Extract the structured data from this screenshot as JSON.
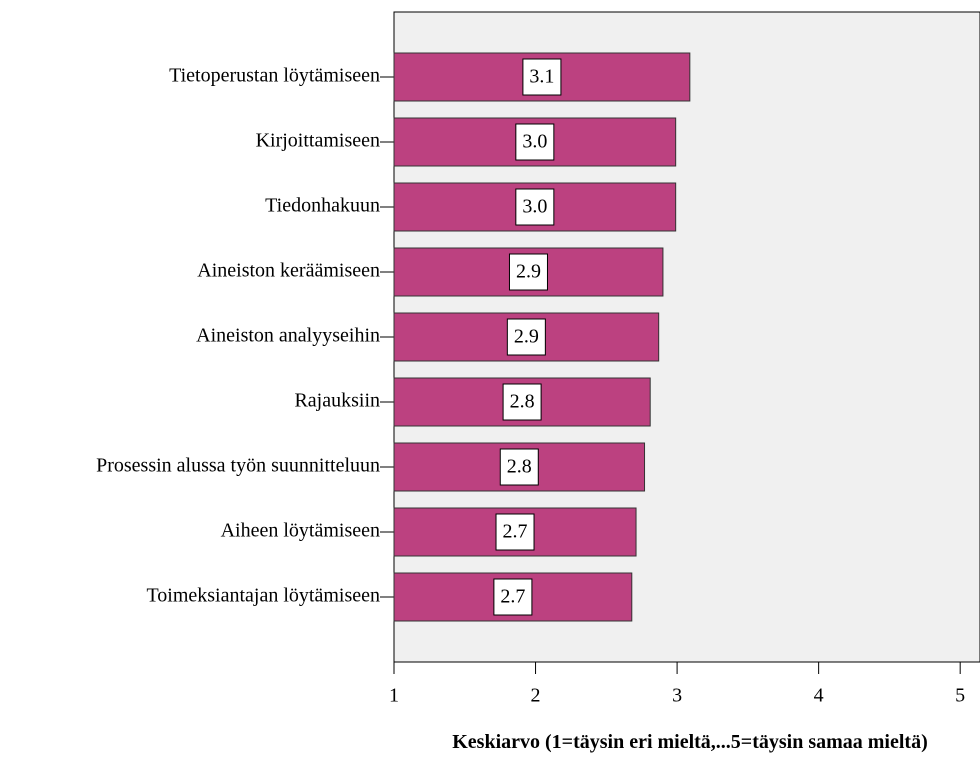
{
  "chart_data": {
    "type": "barh",
    "categories": [
      "Tietoperustan löytämiseen",
      "Kirjoittamiseen",
      "Tiedonhakuun",
      "Aineiston keräämiseen",
      "Aineiston analyyseihin",
      "Rajauksiin",
      "Prosessin alussa työn suunnitteluun",
      "Aiheen löytämiseen",
      "Toimeksiantajan löytämiseen"
    ],
    "values": [
      3.09,
      2.99,
      2.99,
      2.9,
      2.87,
      2.81,
      2.77,
      2.71,
      2.68
    ],
    "value_labels": [
      "3.1",
      "3.0",
      "3.0",
      "2.9",
      "2.9",
      "2.8",
      "2.8",
      "2.7",
      "2.7"
    ],
    "color": "#bc4180",
    "xlim": [
      1,
      5.14
    ],
    "xticks": [
      1,
      2,
      3,
      4,
      5
    ],
    "xlabel": "Keskiarvo (1=täysin eri mieltä,...5=täysin samaa mieltä)"
  }
}
